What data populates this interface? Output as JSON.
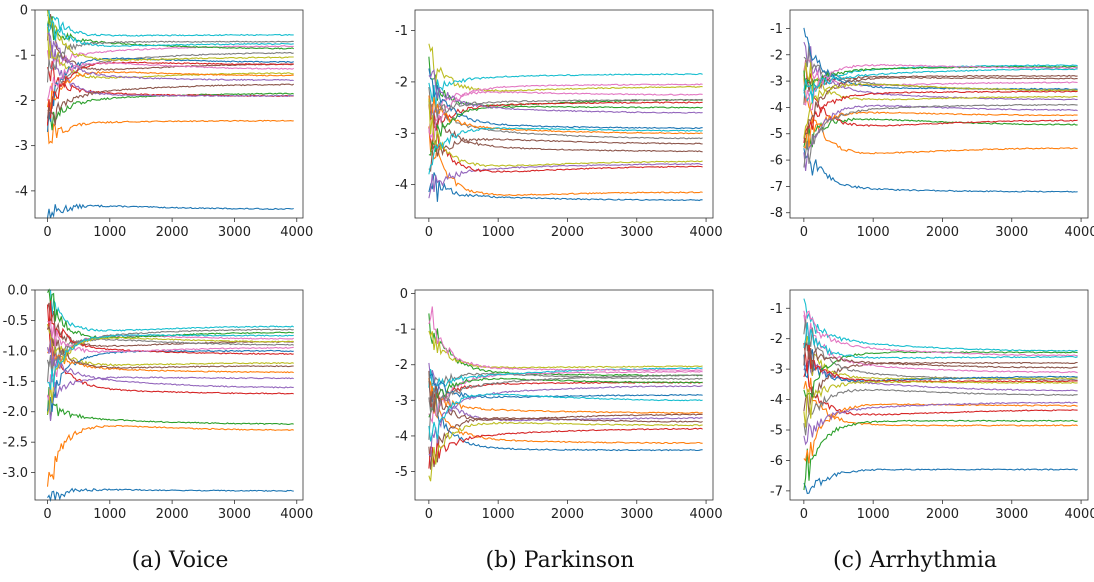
{
  "colors": [
    "#1f77b4",
    "#ff7f0e",
    "#2ca02c",
    "#d62728",
    "#9467bd",
    "#8c564b",
    "#e377c2",
    "#7f7f7f",
    "#bcbd22",
    "#17becf"
  ],
  "captions": [
    "(a) Voice",
    "(b) Parkinson",
    "(c) Arrhythmia"
  ],
  "chart_data": [
    {
      "type": "line",
      "xlim": [
        -200,
        4100
      ],
      "ylim": [
        -4.6,
        0
      ],
      "xticks": [
        0,
        1000,
        2000,
        3000,
        4000
      ],
      "yticks": [
        0,
        -1,
        -2,
        -3,
        -4
      ],
      "ytick_labels": [
        "0",
        "-1",
        "-2",
        "-3",
        "-4"
      ],
      "series": [
        {
          "values": [
            -4.4
          ]
        },
        {
          "values": [
            -2.45
          ]
        },
        {
          "values": [
            -1.85
          ]
        },
        {
          "values": [
            -1.9
          ]
        },
        {
          "values": [
            -1.9
          ]
        },
        {
          "values": [
            -1.2
          ]
        },
        {
          "values": [
            -0.8
          ]
        },
        {
          "values": [
            -0.95
          ]
        },
        {
          "values": [
            -1.4
          ]
        },
        {
          "values": [
            -0.55
          ]
        },
        {
          "values": [
            -1.15
          ]
        },
        {
          "values": [
            -1.45
          ]
        },
        {
          "values": [
            -0.85
          ]
        },
        {
          "values": [
            -1.2
          ]
        },
        {
          "values": [
            -1.55
          ]
        },
        {
          "values": [
            -1.65
          ]
        },
        {
          "values": [
            -1.3
          ]
        },
        {
          "values": [
            -0.7
          ]
        },
        {
          "values": [
            -1.05
          ]
        },
        {
          "values": [
            -0.75
          ]
        }
      ]
    },
    {
      "type": "line",
      "xlim": [
        -200,
        4100
      ],
      "ylim": [
        -4.65,
        -0.6
      ],
      "xticks": [
        0,
        1000,
        2000,
        3000,
        4000
      ],
      "yticks": [
        -1,
        -2,
        -3,
        -4
      ],
      "ytick_labels": [
        "-1",
        "-2",
        "-3",
        "-4"
      ],
      "series": [
        {
          "values": [
            -4.3
          ]
        },
        {
          "values": [
            -4.15
          ]
        },
        {
          "values": [
            -2.35
          ]
        },
        {
          "values": [
            -2.4
          ]
        },
        {
          "values": [
            -3.6
          ]
        },
        {
          "values": [
            -3.35
          ]
        },
        {
          "values": [
            -2.25
          ]
        },
        {
          "values": [
            -3.1
          ]
        },
        {
          "values": [
            -2.1
          ]
        },
        {
          "values": [
            -1.85
          ]
        },
        {
          "values": [
            -2.9
          ]
        },
        {
          "values": [
            -3.0
          ]
        },
        {
          "values": [
            -2.5
          ]
        },
        {
          "values": [
            -3.65
          ]
        },
        {
          "values": [
            -2.6
          ]
        },
        {
          "values": [
            -3.2
          ]
        },
        {
          "values": [
            -2.05
          ]
        },
        {
          "values": [
            -2.35
          ]
        },
        {
          "values": [
            -3.55
          ]
        },
        {
          "values": [
            -2.95
          ]
        }
      ]
    },
    {
      "type": "line",
      "xlim": [
        -200,
        4100
      ],
      "ylim": [
        -8.2,
        -0.3
      ],
      "xticks": [
        0,
        1000,
        2000,
        3000,
        4000
      ],
      "yticks": [
        -1,
        -2,
        -3,
        -4,
        -5,
        -6,
        -7,
        -8
      ],
      "ytick_labels": [
        "-1",
        "-2",
        "-3",
        "-4",
        "-5",
        "-6",
        "-7",
        "-8"
      ],
      "series": [
        {
          "values": [
            -7.2
          ]
        },
        {
          "values": [
            -5.55
          ]
        },
        {
          "values": [
            -4.65
          ]
        },
        {
          "values": [
            -4.5
          ]
        },
        {
          "values": [
            -3.7
          ]
        },
        {
          "values": [
            -2.8
          ]
        },
        {
          "values": [
            -3.05
          ]
        },
        {
          "values": [
            -3.35
          ]
        },
        {
          "values": [
            -3.6
          ]
        },
        {
          "values": [
            -2.4
          ]
        },
        {
          "values": [
            -3.3
          ]
        },
        {
          "values": [
            -4.3
          ]
        },
        {
          "values": [
            -2.45
          ]
        },
        {
          "values": [
            -3.4
          ]
        },
        {
          "values": [
            -4.1
          ]
        },
        {
          "values": [
            -2.9
          ]
        },
        {
          "values": [
            -2.5
          ]
        },
        {
          "values": [
            -3.9
          ]
        },
        {
          "values": [
            -3.35
          ]
        },
        {
          "values": [
            -2.55
          ]
        }
      ]
    },
    {
      "type": "line",
      "xlim": [
        -200,
        4100
      ],
      "ylim": [
        -3.45,
        0
      ],
      "xticks": [
        0,
        1000,
        2000,
        3000,
        4000
      ],
      "yticks": [
        0.0,
        -0.5,
        -1.0,
        -1.5,
        -2.0,
        -2.5,
        -3.0
      ],
      "ytick_labels": [
        "0.0",
        "-0.5",
        "-1.0",
        "-1.5",
        "-2.0",
        "-2.5",
        "-3.0"
      ],
      "series": [
        {
          "values": [
            -3.3
          ]
        },
        {
          "values": [
            -2.3
          ]
        },
        {
          "values": [
            -2.2
          ]
        },
        {
          "values": [
            -1.7
          ]
        },
        {
          "values": [
            -1.45
          ]
        },
        {
          "values": [
            -0.85
          ]
        },
        {
          "values": [
            -0.8
          ]
        },
        {
          "values": [
            -0.9
          ]
        },
        {
          "values": [
            -1.2
          ]
        },
        {
          "values": [
            -0.6
          ]
        },
        {
          "values": [
            -1.0
          ]
        },
        {
          "values": [
            -1.35
          ]
        },
        {
          "values": [
            -0.7
          ]
        },
        {
          "values": [
            -1.05
          ]
        },
        {
          "values": [
            -1.6
          ]
        },
        {
          "values": [
            -1.25
          ]
        },
        {
          "values": [
            -0.95
          ]
        },
        {
          "values": [
            -0.65
          ]
        },
        {
          "values": [
            -0.85
          ]
        },
        {
          "values": [
            -0.75
          ]
        }
      ]
    },
    {
      "type": "line",
      "xlim": [
        -200,
        4100
      ],
      "ylim": [
        -5.8,
        0.1
      ],
      "xticks": [
        0,
        1000,
        2000,
        3000,
        4000
      ],
      "yticks": [
        0,
        -1,
        -2,
        -3,
        -4,
        -5
      ],
      "ytick_labels": [
        "0",
        "-1",
        "-2",
        "-3",
        "-4",
        "-5"
      ],
      "series": [
        {
          "values": [
            -4.4
          ]
        },
        {
          "values": [
            -4.2
          ]
        },
        {
          "values": [
            -2.3
          ]
        },
        {
          "values": [
            -2.5
          ]
        },
        {
          "values": [
            -3.5
          ]
        },
        {
          "values": [
            -3.6
          ]
        },
        {
          "values": [
            -2.2
          ]
        },
        {
          "values": [
            -2.4
          ]
        },
        {
          "values": [
            -2.05
          ]
        },
        {
          "values": [
            -2.1
          ]
        },
        {
          "values": [
            -2.85
          ]
        },
        {
          "values": [
            -3.35
          ]
        },
        {
          "values": [
            -2.5
          ]
        },
        {
          "values": [
            -3.8
          ]
        },
        {
          "values": [
            -2.6
          ]
        },
        {
          "values": [
            -3.4
          ]
        },
        {
          "values": [
            -2.15
          ]
        },
        {
          "values": [
            -2.3
          ]
        },
        {
          "values": [
            -3.7
          ]
        },
        {
          "values": [
            -3.0
          ]
        }
      ]
    },
    {
      "type": "line",
      "xlim": [
        -200,
        4100
      ],
      "ylim": [
        -7.3,
        -0.4
      ],
      "xticks": [
        0,
        1000,
        2000,
        3000,
        4000
      ],
      "yticks": [
        -1,
        -2,
        -3,
        -4,
        -5,
        -6,
        -7
      ],
      "ytick_labels": [
        "-1",
        "-2",
        "-3",
        "-4",
        "-5",
        "-6",
        "-7"
      ],
      "series": [
        {
          "values": [
            -6.3
          ]
        },
        {
          "values": [
            -4.85
          ]
        },
        {
          "values": [
            -4.7
          ]
        },
        {
          "values": [
            -4.35
          ]
        },
        {
          "values": [
            -3.7
          ]
        },
        {
          "values": [
            -2.8
          ]
        },
        {
          "values": [
            -3.1
          ]
        },
        {
          "values": [
            -3.35
          ]
        },
        {
          "values": [
            -3.3
          ]
        },
        {
          "values": [
            -2.4
          ]
        },
        {
          "values": [
            -3.25
          ]
        },
        {
          "values": [
            -4.2
          ]
        },
        {
          "values": [
            -2.45
          ]
        },
        {
          "values": [
            -3.4
          ]
        },
        {
          "values": [
            -4.1
          ]
        },
        {
          "values": [
            -2.95
          ]
        },
        {
          "values": [
            -2.55
          ]
        },
        {
          "values": [
            -3.85
          ]
        },
        {
          "values": [
            -3.45
          ]
        },
        {
          "values": [
            -2.6
          ]
        }
      ]
    }
  ]
}
